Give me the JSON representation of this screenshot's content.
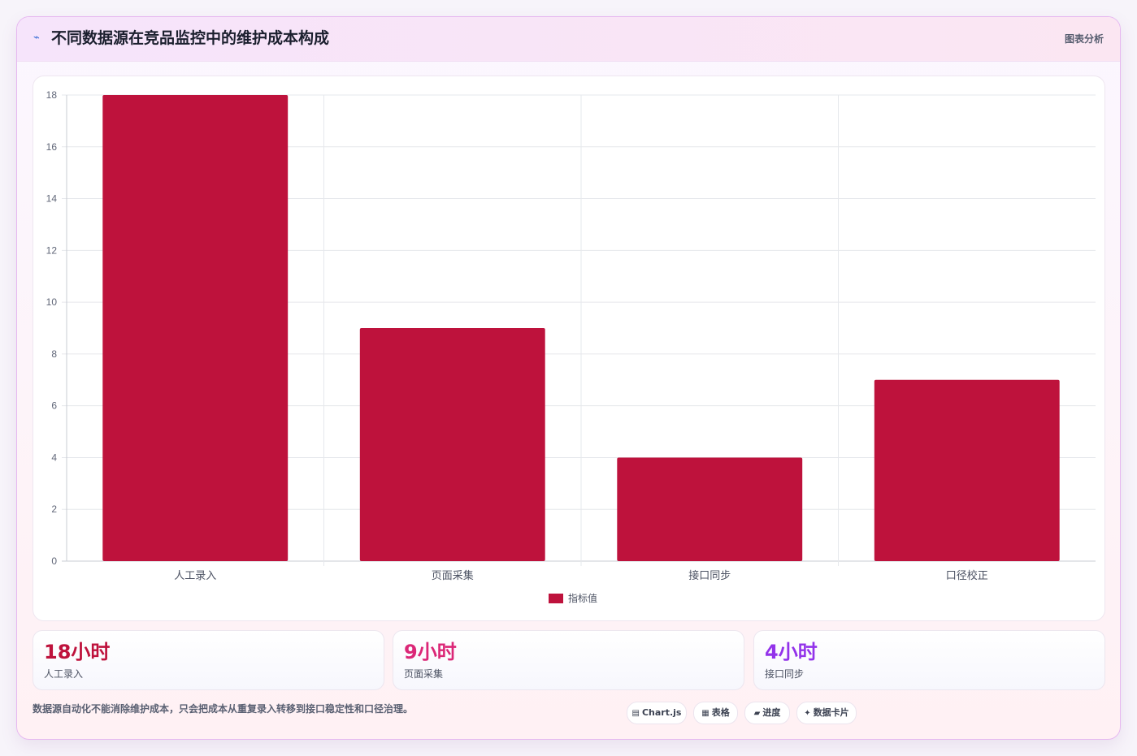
{
  "header": {
    "title": "不同数据源在竞品监控中的维护成本构成",
    "title_icon": "spark-icon",
    "tag": "图表分析"
  },
  "chart_data": {
    "type": "bar",
    "categories": [
      "人工录入",
      "页面采集",
      "接口同步",
      "口径校正"
    ],
    "series": [
      {
        "name": "指标值",
        "values": [
          18,
          9,
          4,
          7
        ]
      }
    ],
    "ylim": [
      0,
      18
    ],
    "yticks": [
      0,
      2,
      4,
      6,
      8,
      10,
      12,
      14,
      16,
      18
    ],
    "grid": true,
    "legend_placement": "bottom-center",
    "bar_color": "#be123c"
  },
  "stats": [
    {
      "value": "18小时",
      "label": "人工录入",
      "color": "#be123c"
    },
    {
      "value": "9小时",
      "label": "页面采集",
      "color": "#db2777"
    },
    {
      "value": "4小时",
      "label": "接口同步",
      "color": "#9333ea"
    }
  ],
  "footnote": "数据源自动化不能消除维护成本，只会把成本从重复录入转移到接口稳定性和口径治理。",
  "pills": [
    {
      "icon": "chart-icon",
      "glyph": "▤",
      "label": "Chart.js"
    },
    {
      "icon": "table-icon",
      "glyph": "▦",
      "label": "表格"
    },
    {
      "icon": "progress-icon",
      "glyph": "▰",
      "label": "进度"
    },
    {
      "icon": "sparkle-icon",
      "glyph": "✦",
      "label": "数据卡片"
    }
  ]
}
